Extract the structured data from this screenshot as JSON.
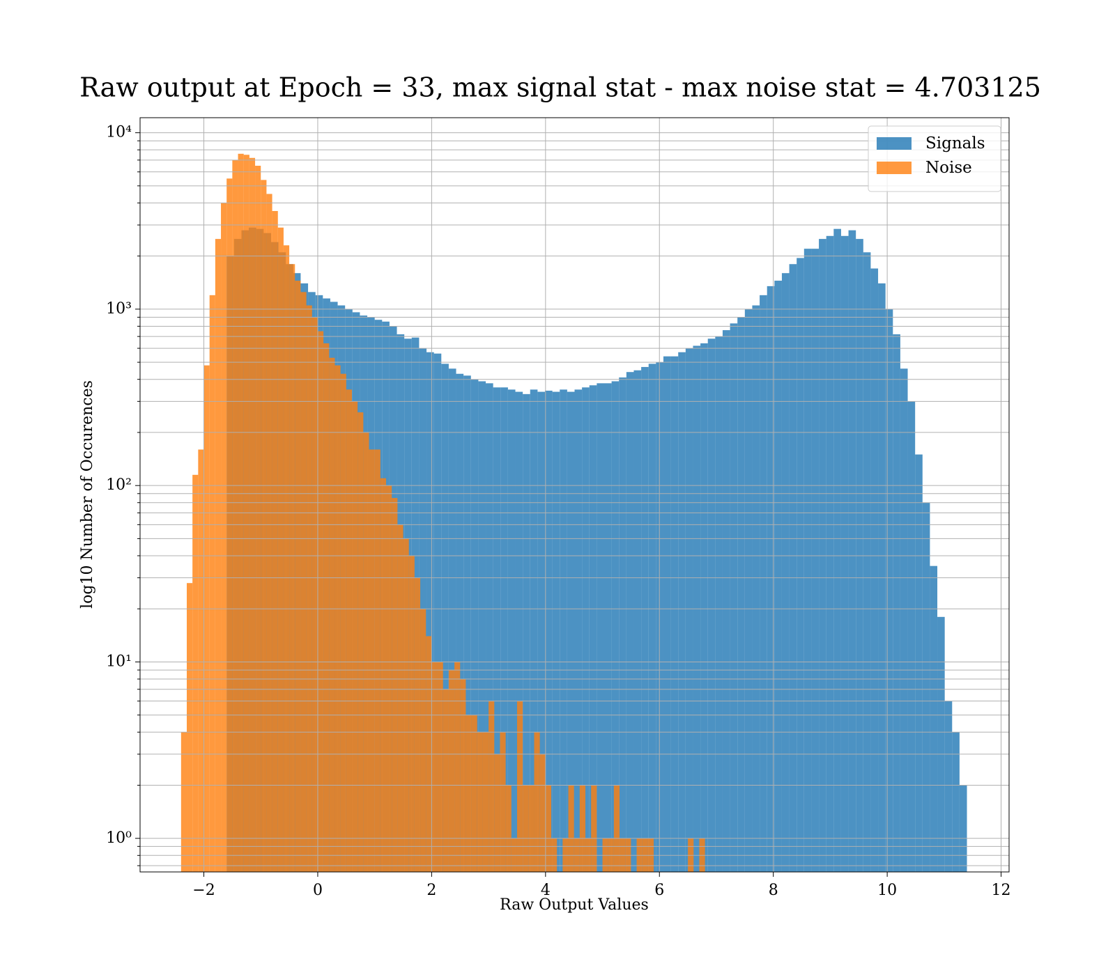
{
  "chart_data": {
    "type": "histogram",
    "title": "Raw output at Epoch = 33, max signal stat - max noise stat = 4.703125",
    "x_label": "Raw Output Values",
    "y_label": "log10 Number of Occurences",
    "yscale": "log",
    "grid": true,
    "legend": "upper right",
    "opacity": 0.8,
    "xlim": [
      -3.12,
      12.14
    ],
    "ylim": [
      0.645,
      12170
    ],
    "xticks": [
      {
        "value": -2,
        "label": "−2"
      },
      0,
      2,
      4,
      6,
      8,
      10,
      12
    ],
    "yticks": [
      {
        "value": 1,
        "label": "10⁰"
      },
      {
        "value": 10,
        "label": "10¹"
      },
      {
        "value": 100,
        "label": "10²"
      },
      {
        "value": 1000,
        "label": "10³"
      },
      {
        "value": 10000,
        "label": "10⁴"
      }
    ],
    "yminorticks": [
      0.7,
      0.8,
      0.9,
      2,
      3,
      4,
      5,
      6,
      7,
      8,
      9,
      20,
      30,
      40,
      50,
      60,
      70,
      80,
      90,
      200,
      300,
      400,
      500,
      600,
      700,
      800,
      900,
      2000,
      3000,
      4000,
      5000,
      6000,
      7000,
      8000,
      9000
    ],
    "series": [
      {
        "name": "Signals",
        "color": "#1f77b4",
        "bins": [
          -1.6,
          -1.47,
          -1.34,
          -1.21,
          -1.08,
          -0.95,
          -0.82,
          -0.69,
          -0.56,
          -0.43,
          -0.3,
          -0.17,
          -0.04,
          0.09,
          0.22,
          0.35,
          0.48,
          0.61,
          0.74,
          0.87,
          1.0,
          1.13,
          1.26,
          1.39,
          1.52,
          1.65,
          1.78,
          1.91,
          2.04,
          2.17,
          2.3,
          2.43,
          2.56,
          2.69,
          2.82,
          2.95,
          3.08,
          3.21,
          3.34,
          3.47,
          3.6,
          3.73,
          3.86,
          3.99,
          4.12,
          4.25,
          4.38,
          4.51,
          4.64,
          4.77,
          4.9,
          5.03,
          5.16,
          5.29,
          5.42,
          5.55,
          5.68,
          5.81,
          5.94,
          6.07,
          6.2,
          6.33,
          6.46,
          6.59,
          6.72,
          6.85,
          6.98,
          7.11,
          7.24,
          7.37,
          7.5,
          7.63,
          7.76,
          7.89,
          8.02,
          8.15,
          8.28,
          8.41,
          8.54,
          8.67,
          8.8,
          8.93,
          9.06,
          9.19,
          9.32,
          9.45,
          9.58,
          9.71,
          9.84,
          9.97,
          10.1,
          10.23,
          10.36,
          10.49,
          10.62,
          10.75,
          10.88,
          11.01,
          11.14,
          11.27,
          11.4
        ],
        "values": [
          2000,
          2500,
          2800,
          2900,
          2850,
          2700,
          2400,
          2100,
          1800,
          1600,
          1400,
          1250,
          1200,
          1150,
          1100,
          1050,
          1000,
          960,
          920,
          900,
          870,
          850,
          800,
          720,
          680,
          690,
          600,
          570,
          560,
          490,
          460,
          430,
          420,
          400,
          390,
          380,
          360,
          360,
          350,
          340,
          330,
          350,
          340,
          345,
          340,
          350,
          340,
          350,
          360,
          370,
          380,
          380,
          390,
          410,
          440,
          450,
          470,
          490,
          500,
          540,
          540,
          570,
          600,
          620,
          640,
          680,
          700,
          760,
          830,
          900,
          1000,
          1050,
          1200,
          1350,
          1450,
          1600,
          1800,
          1950,
          2200,
          2200,
          2500,
          2600,
          2850,
          2600,
          2800,
          2500,
          2100,
          1700,
          1400,
          1000,
          720,
          460,
          300,
          150,
          80,
          35,
          18,
          6,
          4,
          2
        ]
      },
      {
        "name": "Noise",
        "color": "#ff7f0e",
        "bins": [
          -2.4,
          -2.3,
          -2.2,
          -2.1,
          -2.0,
          -1.9,
          -1.8,
          -1.7,
          -1.6,
          -1.5,
          -1.4,
          -1.3,
          -1.2,
          -1.1,
          -1.0,
          -0.9,
          -0.8,
          -0.7,
          -0.6,
          -0.5,
          -0.4,
          -0.3,
          -0.2,
          -0.1,
          0.0,
          0.1,
          0.2,
          0.3,
          0.4,
          0.5,
          0.6,
          0.7,
          0.8,
          0.9,
          1.0,
          1.1,
          1.2,
          1.3,
          1.4,
          1.5,
          1.6,
          1.7,
          1.8,
          1.9,
          2.0,
          2.1,
          2.2,
          2.3,
          2.4,
          2.5,
          2.6,
          2.7,
          2.8,
          2.9,
          3.0,
          3.1,
          3.2,
          3.3,
          3.4,
          3.5,
          3.6,
          3.7,
          3.8,
          3.9,
          4.0,
          4.1,
          4.2,
          4.3,
          4.4,
          4.5,
          4.6,
          4.7,
          4.8,
          4.9,
          5.0,
          5.1,
          5.2,
          5.3,
          5.4,
          5.5,
          5.6,
          5.7,
          5.8,
          5.9,
          6.0,
          6.1,
          6.2,
          6.3,
          6.4,
          6.5,
          6.6,
          6.7,
          6.8
        ],
        "values": [
          4,
          28,
          115,
          160,
          480,
          1200,
          2500,
          4000,
          5500,
          7000,
          7600,
          7500,
          7200,
          6500,
          5400,
          4500,
          3600,
          2900,
          2300,
          1800,
          1450,
          1250,
          1050,
          900,
          750,
          640,
          530,
          480,
          430,
          350,
          300,
          260,
          200,
          160,
          160,
          110,
          100,
          85,
          60,
          50,
          40,
          30,
          20,
          14,
          10,
          10,
          7,
          9,
          10,
          8,
          5,
          5,
          4,
          4,
          6,
          3,
          4,
          2,
          1,
          6,
          2,
          2,
          4,
          3,
          2,
          1,
          0,
          1,
          2,
          1,
          2,
          1,
          2,
          0,
          1,
          1,
          2,
          1,
          1,
          0,
          1,
          1,
          1,
          0,
          0,
          0,
          0,
          0,
          0,
          1,
          0,
          1
        ]
      }
    ]
  }
}
